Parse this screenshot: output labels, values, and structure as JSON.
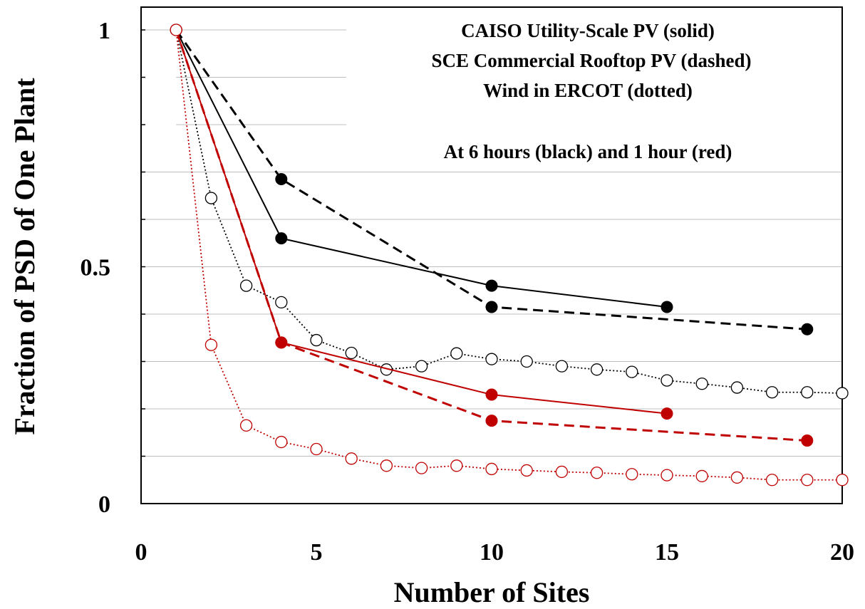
{
  "chart_data": {
    "type": "line",
    "xlabel": "Number of Sites",
    "ylabel": "Fraction of PSD of One Plant",
    "xlim": [
      0,
      20
    ],
    "ylim": [
      0,
      1
    ],
    "x_ticks": [
      "0",
      "5",
      "10",
      "15",
      "20"
    ],
    "y_ticks": [
      "0",
      "0.5",
      "1"
    ],
    "grid": "horizontal, partial",
    "annotations": [
      "CAISO Utility-Scale PV (solid)",
      "SCE Commercial Rooftop PV (dashed)",
      "Wind in ERCOT (dotted)",
      "At 6 hours (black) and 1 hour (red)"
    ],
    "series": [
      {
        "style": "solid",
        "color": "#000000",
        "marker": "filled",
        "x": [
          1,
          4,
          10,
          15
        ],
        "y": [
          1.0,
          0.56,
          0.46,
          0.415
        ]
      },
      {
        "style": "dashed",
        "color": "#000000",
        "marker": "filled",
        "x": [
          1,
          4,
          10,
          19
        ],
        "y": [
          1.0,
          0.685,
          0.415,
          0.368
        ]
      },
      {
        "style": "dotted",
        "color": "#000000",
        "marker": "open",
        "x": [
          1,
          2,
          3,
          4,
          5,
          6,
          7,
          8,
          9,
          10,
          11,
          12,
          13,
          14,
          15,
          16,
          17,
          18,
          19,
          20
        ],
        "y": [
          1.0,
          0.645,
          0.46,
          0.425,
          0.345,
          0.318,
          0.283,
          0.29,
          0.317,
          0.305,
          0.3,
          0.29,
          0.283,
          0.278,
          0.26,
          0.253,
          0.245,
          0.235,
          0.235,
          0.233
        ]
      },
      {
        "style": "solid",
        "color": "#c00000",
        "marker": "filled",
        "x": [
          1,
          4,
          10,
          15
        ],
        "y": [
          1.0,
          0.34,
          0.23,
          0.19
        ]
      },
      {
        "style": "dashed",
        "color": "#c00000",
        "marker": "filled",
        "x": [
          1,
          4,
          10,
          19
        ],
        "y": [
          1.0,
          0.34,
          0.175,
          0.133
        ]
      },
      {
        "style": "dotted",
        "color": "#c00000",
        "marker": "open",
        "x": [
          1,
          2,
          3,
          4,
          5,
          6,
          7,
          8,
          9,
          10,
          11,
          12,
          13,
          14,
          15,
          16,
          17,
          18,
          19,
          20
        ],
        "y": [
          1.0,
          0.335,
          0.165,
          0.13,
          0.115,
          0.095,
          0.08,
          0.075,
          0.08,
          0.073,
          0.07,
          0.067,
          0.065,
          0.062,
          0.06,
          0.058,
          0.055,
          0.05,
          0.05,
          0.05
        ]
      }
    ]
  }
}
